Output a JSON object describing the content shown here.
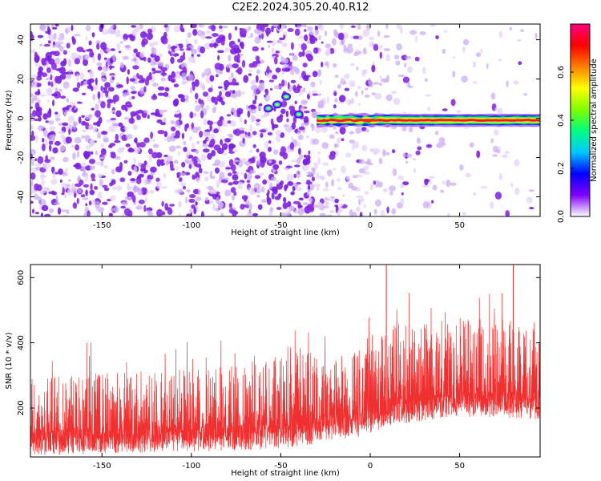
{
  "chart_data": [
    {
      "type": "heatmap",
      "title": "C2E2.2024.305.20.40.R12",
      "xlabel": "Height of straight line (km)",
      "ylabel": "Frequency (Hz)",
      "xlim": [
        -190,
        95
      ],
      "ylim": [
        -50,
        48
      ],
      "xticks": [
        -150,
        -100,
        -50,
        0,
        50
      ],
      "yticks": [
        -40,
        -20,
        0,
        20,
        40
      ],
      "colorbar": {
        "label": "Normalized spectral amplitude",
        "range": [
          0.0,
          0.8
        ],
        "ticks": [
          "0.0",
          "0.2",
          "0.4",
          "0.6"
        ],
        "colors": [
          "#ffffff",
          "#8000ff",
          "#0000ff",
          "#00c8ff",
          "#00ff80",
          "#80ff00",
          "#ffff00",
          "#ff8000",
          "#ff0000",
          "#ff0080"
        ]
      },
      "features": [
        {
          "name": "noise field",
          "x_range": [
            -190,
            -30
          ],
          "y_range": [
            -50,
            48
          ],
          "amplitude": 0.08
        },
        {
          "name": "fading noise",
          "x_range": [
            -30,
            95
          ],
          "y_range": [
            -50,
            48
          ],
          "amplitude": 0.03
        },
        {
          "name": "tonal line",
          "x_range": [
            -30,
            95
          ],
          "frequency": -1,
          "amplitude_peak": 0.75
        },
        {
          "name": "bright blobs",
          "points": [
            [
              -57,
              5
            ],
            [
              -52,
              7
            ],
            [
              -47,
              11
            ],
            [
              -40,
              2
            ]
          ]
        }
      ]
    },
    {
      "type": "line",
      "xlabel": "Height of straight line (km)",
      "ylabel": "SNR (10 * v/v)",
      "xlim": [
        -190,
        95
      ],
      "ylim": [
        50,
        640
      ],
      "xticks": [
        -150,
        -100,
        -50,
        0,
        50
      ],
      "yticks": [
        200,
        400,
        600
      ],
      "color": "#f03030",
      "envelope": [
        {
          "x": -190,
          "base": 110,
          "upper": 300
        },
        {
          "x": -100,
          "base": 120,
          "upper": 320
        },
        {
          "x": -50,
          "base": 130,
          "upper": 360
        },
        {
          "x": -35,
          "base": 140,
          "upper": 400
        },
        {
          "x": -30,
          "base": 150,
          "upper": 350
        },
        {
          "x": 0,
          "base": 170,
          "upper": 380
        },
        {
          "x": 10,
          "base": 200,
          "upper": 470
        },
        {
          "x": 50,
          "base": 230,
          "upper": 480
        },
        {
          "x": 95,
          "base": 220,
          "upper": 470
        }
      ],
      "peaks": [
        {
          "x": 9,
          "y": 640
        },
        {
          "x": 80,
          "y": 640
        }
      ]
    }
  ]
}
